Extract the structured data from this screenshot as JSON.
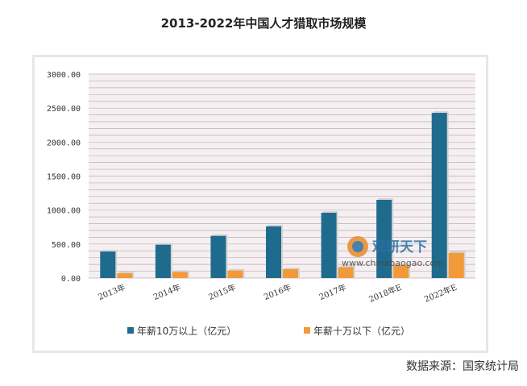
{
  "title": "2013-2022年中国人才猎取市场规模",
  "source": "数据来源：国家统计局",
  "watermark": {
    "text": "观研天下",
    "url": "www.chinabaogao.com"
  },
  "colors": {
    "series1": "#1f6b8e",
    "series2": "#f29a3a",
    "grid": "#c9a9b4",
    "plot_bg": "#f4f0f1"
  },
  "chart_data": {
    "type": "bar",
    "title": "2013-2022年中国人才猎取市场规模",
    "xlabel": "",
    "ylabel": "",
    "categories": [
      "2013年",
      "2014年",
      "2015年",
      "2016年",
      "2017年",
      "2018年E",
      "2022年E"
    ],
    "series": [
      {
        "name": "年薪10万以上（亿元）",
        "values": [
          390,
          490,
          620,
          760,
          960,
          1150,
          2430
        ]
      },
      {
        "name": "年薪十万以下（亿元）",
        "values": [
          70,
          90,
          110,
          130,
          160,
          190,
          370
        ]
      }
    ],
    "ylim": [
      0,
      3000
    ],
    "yticks": [
      "0.00",
      "500.00",
      "1000.00",
      "1500.00",
      "2000.00",
      "2500.00",
      "3000.00"
    ],
    "grid": true,
    "legend": "bottom"
  }
}
